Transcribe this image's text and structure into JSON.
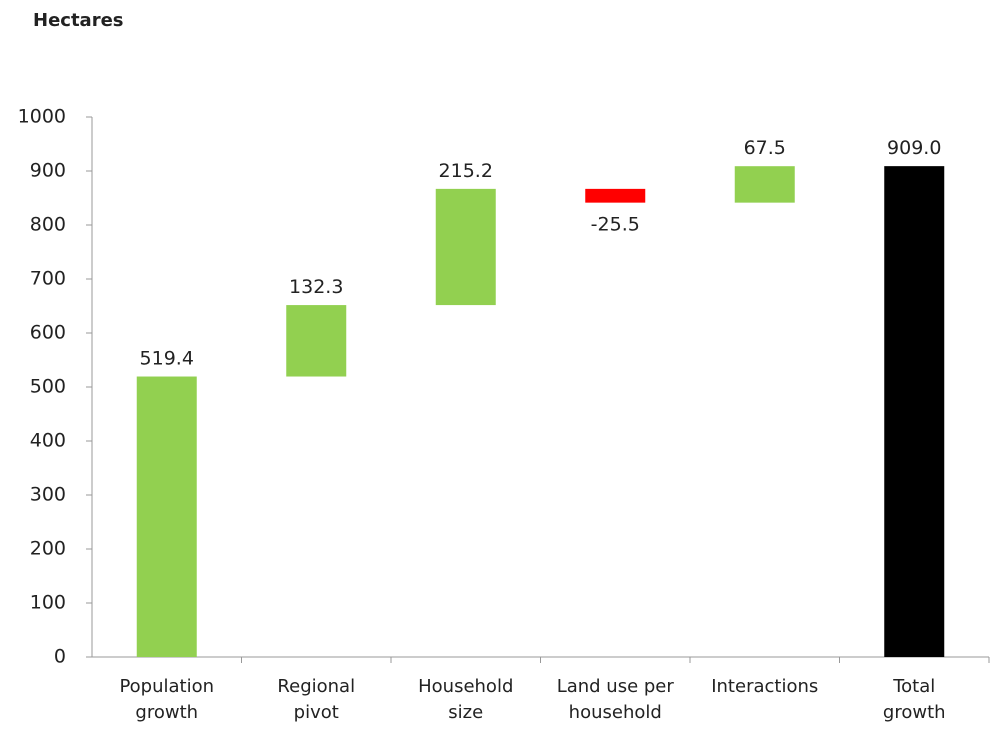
{
  "chart_data": {
    "type": "waterfall",
    "title": "Hectares",
    "categories": [
      "Population\ngrowth",
      "Regional\npivot",
      "Household\nsize",
      "Land use per\nhousehold",
      "Interactions",
      "Total\ngrowth"
    ],
    "values": [
      519.4,
      132.3,
      215.2,
      -25.5,
      67.5,
      909.0
    ],
    "value_labels": [
      "519.4",
      "132.3",
      "215.2",
      "-25.5",
      "67.5",
      "909.0"
    ],
    "measure": [
      "relative",
      "relative",
      "relative",
      "relative",
      "relative",
      "total"
    ],
    "colors": {
      "increase": "#92d050",
      "decrease": "#ff0000",
      "total": "#000000"
    },
    "ylim": [
      0,
      1000
    ],
    "yticks": [
      0,
      100,
      200,
      300,
      400,
      500,
      600,
      700,
      800,
      900,
      1000
    ],
    "grid": false
  }
}
